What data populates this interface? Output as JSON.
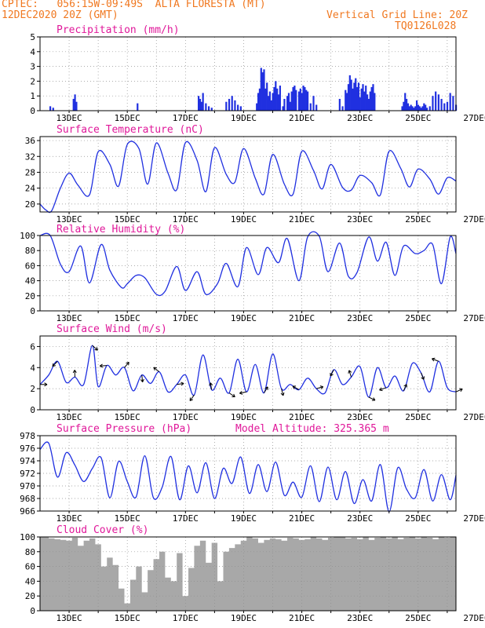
{
  "header": {
    "line1": "CPTEC:   056:15W-09:49S  ALTA FLORESTA (MT)",
    "line2": "12DEC2020 20Z (GMT)",
    "grid_note": "Vertical Grid Line: 20Z",
    "code": "TQ0126L028"
  },
  "colors": {
    "header": "#f07820",
    "title": "#e0189a",
    "line": "#2030e0",
    "bar": "#2030e0",
    "cloud": "#a8a8a8",
    "grid": "#909090"
  },
  "x_tick_labels": [
    "13DEC",
    "15DEC",
    "17DEC",
    "19DEC",
    "21DEC",
    "23DEC",
    "25DEC",
    "27DEC"
  ],
  "chart_data": [
    {
      "type": "bar",
      "title": "Precipitation (mm/h)",
      "ylim": [
        0,
        5
      ],
      "yticks": [
        0,
        1,
        2,
        3,
        4,
        5
      ],
      "x": [
        0.35,
        0.45,
        1.15,
        1.2,
        1.25,
        3.35,
        5.45,
        5.5,
        5.55,
        5.6,
        5.7,
        5.8,
        5.9,
        6.4,
        6.5,
        6.6,
        6.7,
        6.8,
        6.9,
        7.45,
        7.5,
        7.55,
        7.6,
        7.65,
        7.7,
        7.75,
        7.8,
        7.85,
        7.9,
        7.95,
        8.0,
        8.05,
        8.1,
        8.15,
        8.2,
        8.25,
        8.35,
        8.4,
        8.5,
        8.55,
        8.6,
        8.65,
        8.7,
        8.75,
        8.8,
        8.9,
        8.95,
        9.0,
        9.05,
        9.1,
        9.15,
        9.2,
        9.3,
        9.4,
        9.5,
        10.3,
        10.4,
        10.5,
        10.55,
        10.6,
        10.65,
        10.7,
        10.75,
        10.8,
        10.85,
        10.9,
        10.95,
        11.0,
        11.05,
        11.1,
        11.15,
        11.2,
        11.25,
        11.3,
        11.35,
        11.4,
        11.45,
        11.5,
        12.45,
        12.5,
        12.55,
        12.6,
        12.65,
        12.7,
        12.75,
        12.8,
        12.85,
        12.9,
        12.95,
        13.0,
        13.05,
        13.1,
        13.15,
        13.2,
        13.25,
        13.3,
        13.4,
        13.5,
        13.6,
        13.7,
        13.8,
        13.9,
        14.0,
        14.1,
        14.2,
        14.3
      ],
      "values": [
        0.3,
        0.2,
        0.8,
        1.1,
        0.6,
        0.5,
        1.0,
        0.8,
        0.6,
        1.2,
        0.5,
        0.3,
        0.2,
        0.6,
        0.8,
        1.0,
        0.7,
        0.4,
        0.3,
        0.5,
        1.2,
        1.5,
        2.9,
        2.6,
        2.8,
        1.5,
        1.9,
        1.0,
        1.3,
        0.7,
        1.2,
        1.6,
        2.0,
        1.5,
        1.1,
        1.7,
        0.3,
        0.8,
        1.0,
        1.2,
        0.6,
        1.3,
        1.6,
        1.7,
        1.4,
        1.3,
        1.5,
        1.2,
        1.7,
        1.6,
        1.4,
        1.3,
        0.5,
        1.0,
        0.4,
        0.8,
        0.3,
        1.4,
        1.2,
        1.8,
        2.4,
        2.1,
        1.5,
        1.9,
        2.2,
        1.6,
        1.9,
        0.9,
        1.5,
        1.8,
        1.3,
        1.7,
        1.1,
        0.8,
        1.3,
        1.6,
        1.8,
        1.2,
        0.3,
        0.6,
        1.2,
        0.8,
        0.5,
        0.3,
        0.4,
        0.3,
        0.2,
        0.3,
        0.7,
        0.4,
        0.3,
        0.2,
        0.3,
        0.5,
        0.4,
        0.2,
        0.3,
        1.0,
        1.3,
        1.1,
        0.8,
        0.5,
        0.6,
        1.2,
        1.0,
        0.4
      ]
    },
    {
      "type": "line",
      "title": "Surface Temperature (nC)",
      "ylim": [
        18,
        37
      ],
      "yticks": [
        20,
        24,
        28,
        32,
        36
      ],
      "x": [
        0,
        0.2,
        0.4,
        0.7,
        1.0,
        1.3,
        1.7,
        2.0,
        2.4,
        2.7,
        3.0,
        3.4,
        3.7,
        4.0,
        4.4,
        4.7,
        5.0,
        5.4,
        5.7,
        6.0,
        6.4,
        6.7,
        7.0,
        7.4,
        7.7,
        8.0,
        8.4,
        8.7,
        9.0,
        9.4,
        9.7,
        10.0,
        10.4,
        10.7,
        11.0,
        11.4,
        11.7,
        12.0,
        12.4,
        12.7,
        13.0,
        13.4,
        13.7,
        14.0,
        14.3
      ],
      "values": [
        20,
        18.5,
        18.3,
        24,
        27.8,
        24.8,
        22.3,
        33.2,
        30,
        24.5,
        35,
        34,
        25,
        35.4,
        27.8,
        23.6,
        35.5,
        31,
        23.1,
        34.2,
        27.5,
        25.5,
        34,
        26.5,
        22.5,
        32.5,
        25,
        22.5,
        33.3,
        28.5,
        23.8,
        30,
        24.2,
        23.5,
        27.2,
        25.4,
        22.3,
        33.3,
        29,
        24.3,
        28.8,
        26.3,
        22.5,
        26.6,
        25.8
      ]
    },
    {
      "type": "line",
      "title": "Relative Humidity (%)",
      "ylim": [
        0,
        100
      ],
      "yticks": [
        0,
        20,
        40,
        60,
        80,
        100
      ],
      "x": [
        0,
        0.35,
        0.7,
        1.0,
        1.4,
        1.7,
        2.1,
        2.4,
        2.8,
        3.0,
        3.3,
        3.6,
        4.0,
        4.3,
        4.7,
        5.0,
        5.4,
        5.7,
        6.1,
        6.4,
        6.8,
        7.1,
        7.5,
        7.8,
        8.2,
        8.5,
        8.9,
        9.2,
        9.6,
        9.9,
        10.3,
        10.6,
        10.9,
        11.3,
        11.6,
        11.9,
        12.2,
        12.5,
        12.9,
        13.2,
        13.5,
        13.8,
        14.1,
        14.3
      ],
      "values": [
        100,
        100,
        62,
        52,
        86,
        37,
        88,
        54,
        31,
        36,
        47,
        44,
        22,
        26,
        59,
        27,
        52,
        22,
        36,
        63,
        32,
        84,
        48,
        84,
        64,
        96,
        40,
        98,
        99,
        52,
        90,
        46,
        51,
        98,
        66,
        91,
        47,
        86,
        76,
        80,
        88,
        36,
        98,
        76
      ]
    },
    {
      "type": "line",
      "title": "Surface Wind (m/s)",
      "ylim": [
        0,
        7
      ],
      "yticks": [
        0,
        2,
        4,
        6
      ],
      "x": [
        0,
        0.3,
        0.6,
        0.9,
        1.2,
        1.5,
        1.8,
        2.0,
        2.3,
        2.6,
        2.9,
        3.2,
        3.5,
        3.8,
        4.1,
        4.4,
        4.7,
        5.0,
        5.3,
        5.6,
        5.9,
        6.2,
        6.5,
        6.8,
        7.1,
        7.4,
        7.7,
        8.0,
        8.3,
        8.6,
        8.9,
        9.2,
        9.5,
        9.8,
        10.1,
        10.4,
        10.7,
        11.0,
        11.3,
        11.6,
        11.9,
        12.2,
        12.5,
        12.8,
        13.1,
        13.4,
        13.7,
        14.0,
        14.3
      ],
      "values": [
        2.4,
        3.3,
        4.6,
        2.6,
        3.1,
        2.4,
        6.1,
        2.2,
        4.2,
        3.3,
        4.0,
        1.8,
        3.3,
        2.5,
        3.6,
        1.7,
        2.4,
        3.3,
        1.4,
        5.2,
        1.9,
        3.0,
        1.6,
        4.8,
        1.7,
        4.3,
        1.6,
        5.3,
        2.0,
        2.4,
        1.9,
        3.0,
        2.0,
        1.6,
        3.8,
        2.4,
        3.1,
        4.1,
        1.2,
        4.0,
        2.1,
        3.2,
        1.8,
        4.4,
        3.5,
        1.7,
        4.6,
        2.1,
        1.7
      ]
    },
    {
      "type": "line",
      "title": "Surface Pressure (hPa)",
      "annotation": "Model Altitude: 325.365  m",
      "ylim": [
        966,
        978
      ],
      "yticks": [
        966,
        968,
        970,
        972,
        974,
        976,
        978
      ],
      "x": [
        0,
        0.3,
        0.6,
        0.9,
        1.2,
        1.5,
        1.8,
        2.1,
        2.4,
        2.7,
        3.0,
        3.3,
        3.6,
        3.9,
        4.2,
        4.5,
        4.8,
        5.1,
        5.4,
        5.7,
        6.0,
        6.3,
        6.6,
        6.9,
        7.2,
        7.5,
        7.8,
        8.1,
        8.4,
        8.7,
        9.0,
        9.3,
        9.6,
        9.9,
        10.2,
        10.5,
        10.8,
        11.1,
        11.4,
        11.7,
        12.0,
        12.3,
        12.6,
        12.9,
        13.2,
        13.5,
        13.8,
        14.1,
        14.3
      ],
      "values": [
        975.8,
        976.8,
        971.4,
        975.3,
        973.3,
        970.7,
        972.8,
        974.5,
        968.1,
        973.9,
        970.7,
        968.2,
        974.8,
        968.1,
        969.8,
        974.7,
        967.8,
        973.2,
        968.9,
        973.7,
        968.0,
        972.8,
        970.4,
        974.6,
        968.8,
        973.4,
        969.1,
        973.8,
        968.5,
        970.6,
        968.2,
        973.2,
        967.5,
        973.0,
        967.8,
        972.3,
        967.2,
        971.0,
        967.6,
        973.4,
        965.9,
        972.9,
        969.5,
        968.1,
        972.6,
        967.6,
        971.8,
        967.8,
        971.7
      ]
    },
    {
      "type": "area",
      "title": "Cloud Cover (%)",
      "ylim": [
        0,
        100
      ],
      "yticks": [
        0,
        20,
        40,
        60,
        80,
        100
      ],
      "x": [
        0,
        0.3,
        0.5,
        0.7,
        0.9,
        1.1,
        1.3,
        1.5,
        1.7,
        1.9,
        2.1,
        2.3,
        2.5,
        2.7,
        2.9,
        3.1,
        3.3,
        3.5,
        3.7,
        3.9,
        4.1,
        4.3,
        4.5,
        4.7,
        4.9,
        5.1,
        5.3,
        5.5,
        5.7,
        5.9,
        6.1,
        6.3,
        6.5,
        6.7,
        6.9,
        7.1,
        7.3,
        7.5,
        7.7,
        7.9,
        8.1,
        8.3,
        8.5,
        8.7,
        8.9,
        9.1,
        9.3,
        9.5,
        9.7,
        9.9,
        10.1,
        10.3,
        10.5,
        10.7,
        10.9,
        11.1,
        11.3,
        11.5,
        11.7,
        11.9,
        12.1,
        12.3,
        12.5,
        12.7,
        12.9,
        13.1,
        13.3,
        13.5,
        13.7,
        13.9,
        14.1,
        14.3
      ],
      "values": [
        100,
        98,
        97,
        96,
        95,
        99,
        88,
        95,
        98,
        90,
        60,
        72,
        62,
        30,
        10,
        42,
        60,
        25,
        55,
        70,
        80,
        45,
        40,
        78,
        20,
        58,
        88,
        95,
        65,
        92,
        40,
        80,
        85,
        90,
        95,
        100,
        98,
        92,
        96,
        98,
        97,
        95,
        99,
        98,
        96,
        97,
        100,
        98,
        96,
        99,
        100,
        100,
        98,
        99,
        97,
        100,
        96,
        99,
        100,
        98,
        100,
        97,
        99,
        100,
        98,
        100,
        99,
        97,
        100,
        99,
        100,
        100
      ]
    }
  ]
}
